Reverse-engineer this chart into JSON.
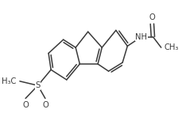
{
  "bg_color": "#ffffff",
  "line_color": "#3a3a3a",
  "line_width": 1.1,
  "font_size": 7.2,
  "figsize": [
    2.3,
    1.62
  ],
  "dpi": 100,
  "xlim": [
    -0.15,
    2.15
  ],
  "ylim": [
    -0.12,
    1.52
  ]
}
